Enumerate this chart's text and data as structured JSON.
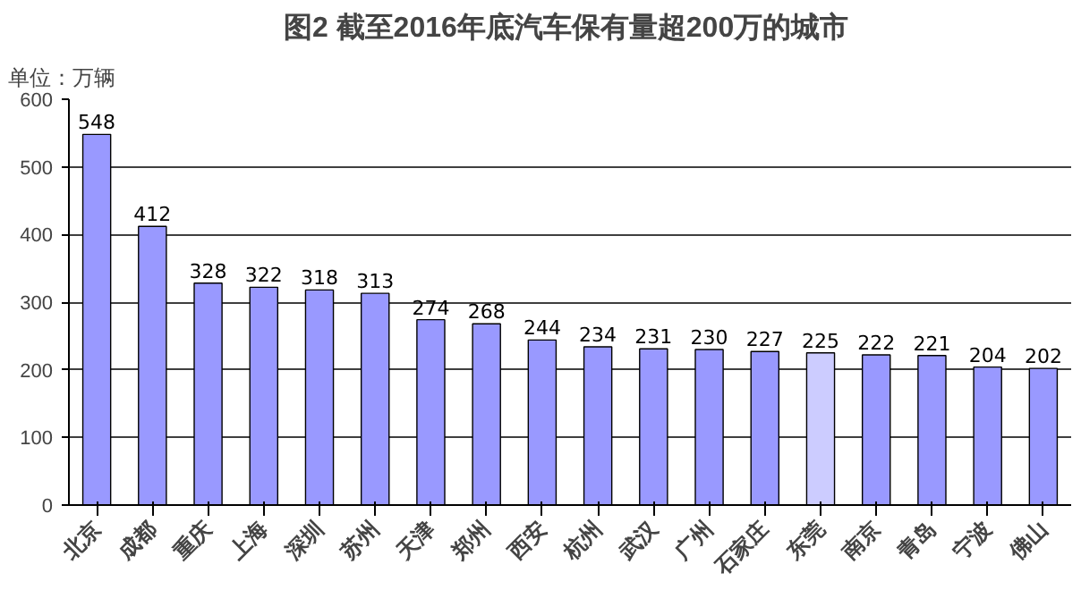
{
  "chart_data": {
    "type": "bar",
    "title": "图2  截至2016年底汽车保有量超200万的城市",
    "ylabel": "单位：万辆",
    "categories": [
      "北京",
      "成都",
      "重庆",
      "上海",
      "深圳",
      "苏州",
      "天津",
      "郑州",
      "西安",
      "杭州",
      "武汉",
      "广州",
      "石家庄",
      "东莞",
      "南京",
      "青岛",
      "宁波",
      "佛山"
    ],
    "values": [
      548,
      412,
      328,
      322,
      318,
      313,
      274,
      268,
      244,
      234,
      231,
      230,
      227,
      225,
      222,
      221,
      204,
      202
    ],
    "colors": [
      "#9999ff",
      "#9999ff",
      "#9999ff",
      "#9999ff",
      "#9999ff",
      "#9999ff",
      "#9999ff",
      "#9999ff",
      "#9999ff",
      "#9999ff",
      "#9999ff",
      "#9999ff",
      "#9999ff",
      "#ccccff",
      "#9999ff",
      "#9999ff",
      "#9999ff",
      "#9999ff"
    ],
    "ylim": [
      0,
      600
    ],
    "yticks": [
      0,
      100,
      200,
      300,
      400,
      500,
      600
    ],
    "grid": "y",
    "data_labels": true
  }
}
